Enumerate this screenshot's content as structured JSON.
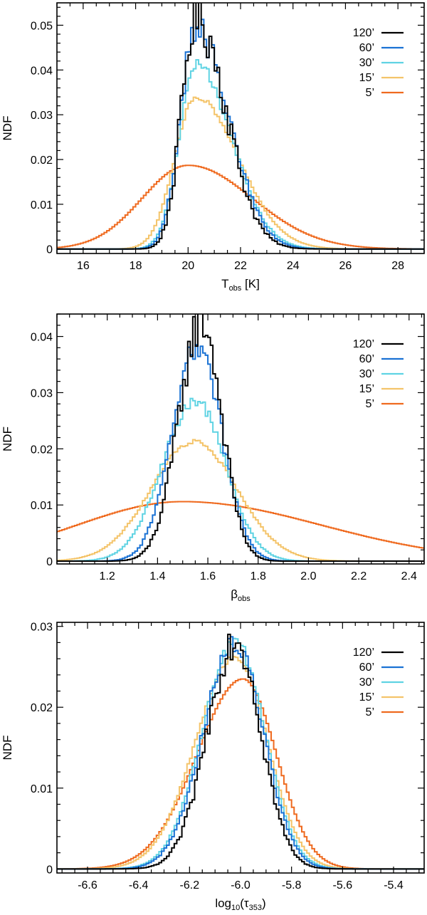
{
  "chart_data": [
    {
      "type": "line",
      "title": "",
      "xlabel_main": "T",
      "xlabel_sub": "obs",
      "xlabel_tail": " [K]",
      "ylabel": "NDF",
      "xlim": [
        15,
        29
      ],
      "ylim": [
        -0.001,
        0.055
      ],
      "xticks": [
        16,
        18,
        20,
        22,
        24,
        26,
        28
      ],
      "xtick_labels": [
        "16",
        "18",
        "20",
        "22",
        "24",
        "26",
        "28"
      ],
      "yticks": [
        0,
        0.01,
        0.02,
        0.03,
        0.04,
        0.05
      ],
      "ytick_labels": [
        "0",
        "0.01",
        "0.02",
        "0.03",
        "0.04",
        "0.05"
      ],
      "legend_position": "top-right",
      "series": [
        {
          "name": "120’",
          "color": "#000000",
          "center": 20.3,
          "sigma_left": 0.55,
          "sigma_right": 1.15,
          "peak": 0.052,
          "jitter": 0.12,
          "step": 0.1
        },
        {
          "name": "60’",
          "color": "#1a72d4",
          "center": 20.3,
          "sigma_left": 0.6,
          "sigma_right": 1.25,
          "peak": 0.049,
          "jitter": 0.07,
          "step": 0.1
        },
        {
          "name": "30’",
          "color": "#5fd3e3",
          "center": 20.3,
          "sigma_left": 0.65,
          "sigma_right": 1.35,
          "peak": 0.041,
          "jitter": 0.04,
          "step": 0.1
        },
        {
          "name": "15’",
          "color": "#f4c46a",
          "center": 20.3,
          "sigma_left": 0.8,
          "sigma_right": 1.6,
          "peak": 0.034,
          "jitter": 0.015,
          "step": 0.1
        },
        {
          "name": "5’",
          "color": "#ef6a1f",
          "center": 20.0,
          "sigma_left": 1.75,
          "sigma_right": 2.45,
          "peak": 0.0187,
          "jitter": 0.0,
          "step": 0.1
        }
      ]
    },
    {
      "type": "line",
      "title": "",
      "xlabel_main": "β",
      "xlabel_sub": "obs",
      "xlabel_tail": "",
      "ylabel": "NDF",
      "xlim": [
        1.0,
        2.46
      ],
      "ylim": [
        -0.0005,
        0.044
      ],
      "xticks": [
        1.2,
        1.4,
        1.6,
        1.8,
        2.0,
        2.2,
        2.4
      ],
      "xtick_labels": [
        "1.2",
        "1.4",
        "1.6",
        "1.8",
        "2.0",
        "2.2",
        "2.4"
      ],
      "yticks": [
        0,
        0.01,
        0.02,
        0.03,
        0.04
      ],
      "ytick_labels": [
        "0",
        "0.01",
        "0.02",
        "0.03",
        "0.04"
      ],
      "legend_position": "top-right",
      "series": [
        {
          "name": "120’",
          "color": "#000000",
          "center": 1.575,
          "sigma_left": 0.09,
          "sigma_right": 0.08,
          "peak": 0.043,
          "jitter": 0.1,
          "step": 0.01
        },
        {
          "name": "60’",
          "color": "#1a72d4",
          "center": 1.56,
          "sigma_left": 0.1,
          "sigma_right": 0.095,
          "peak": 0.038,
          "jitter": 0.07,
          "step": 0.01
        },
        {
          "name": "30’",
          "color": "#5fd3e3",
          "center": 1.55,
          "sigma_left": 0.13,
          "sigma_right": 0.12,
          "peak": 0.0285,
          "jitter": 0.04,
          "step": 0.01
        },
        {
          "name": "15’",
          "color": "#f4c46a",
          "center": 1.545,
          "sigma_left": 0.17,
          "sigma_right": 0.17,
          "peak": 0.0213,
          "jitter": 0.02,
          "step": 0.01
        },
        {
          "name": "5’",
          "color": "#ef6a1f",
          "center": 1.5,
          "sigma_left": 0.42,
          "sigma_right": 0.55,
          "peak": 0.0106,
          "jitter": 0.0,
          "step": 0.01
        }
      ]
    },
    {
      "type": "line",
      "title": "",
      "xlabel_main": "log",
      "xlabel_sub": "10",
      "xlabel_tail": "(τ",
      "xlabel_sub2": "353",
      "xlabel_tail2": ")",
      "ylabel": "NDF",
      "xlim": [
        -6.72,
        -5.28
      ],
      "ylim": [
        -0.0005,
        0.0305
      ],
      "xticks": [
        -6.6,
        -6.4,
        -6.2,
        -6.0,
        -5.8,
        -5.6,
        -5.4
      ],
      "xtick_labels": [
        "-6.6",
        "-6.4",
        "-6.2",
        "-6.0",
        "-5.8",
        "-5.6",
        "-5.4"
      ],
      "yticks": [
        0,
        0.01,
        0.02,
        0.03
      ],
      "ytick_labels": [
        "0",
        "0.01",
        "0.02",
        "0.03"
      ],
      "legend_position": "top-right",
      "series": [
        {
          "name": "120’",
          "color": "#000000",
          "center": -6.02,
          "sigma_left": 0.11,
          "sigma_right": 0.1,
          "peak": 0.0285,
          "jitter": 0.09,
          "step": 0.01
        },
        {
          "name": "60’",
          "color": "#1a72d4",
          "center": -6.02,
          "sigma_left": 0.125,
          "sigma_right": 0.11,
          "peak": 0.0282,
          "jitter": 0.05,
          "step": 0.01
        },
        {
          "name": "30’",
          "color": "#5fd3e3",
          "center": -6.02,
          "sigma_left": 0.13,
          "sigma_right": 0.115,
          "peak": 0.028,
          "jitter": 0.03,
          "step": 0.01
        },
        {
          "name": "15’",
          "color": "#f4c46a",
          "center": -6.02,
          "sigma_left": 0.155,
          "sigma_right": 0.125,
          "peak": 0.0262,
          "jitter": 0.015,
          "step": 0.01
        },
        {
          "name": "5’",
          "color": "#ef6a1f",
          "center": -5.99,
          "sigma_left": 0.18,
          "sigma_right": 0.13,
          "peak": 0.0235,
          "jitter": 0.0,
          "step": 0.01
        }
      ]
    }
  ]
}
